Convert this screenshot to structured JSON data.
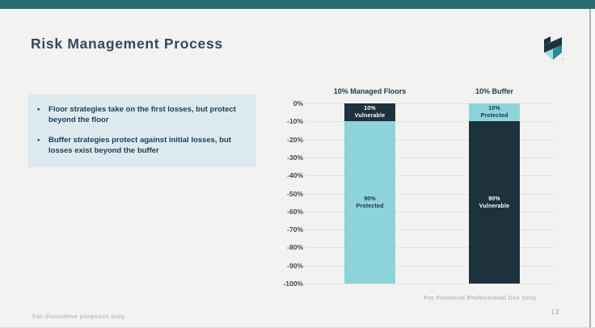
{
  "slide": {
    "title": "Risk Management Process",
    "page_number": "13",
    "footer_left": "For illustrative purposes only.",
    "footer_right": "For Financial Professional Use Only",
    "accent_bar_color": "#2b6a72",
    "bullet_box_color": "#dceaef"
  },
  "logo": {
    "name": "company-shield-logo"
  },
  "bullets": {
    "items": [
      "Floor strategies take on the first losses, but protect beyond the floor",
      "Buffer strategies protect against initial losses, but losses exist beyond the buffer"
    ]
  },
  "chart_data": {
    "type": "bar",
    "subtype": "stacked-column",
    "title": "",
    "xlabel": "",
    "ylabel": "",
    "categories": [
      "10% Managed Floors",
      "10% Buffer"
    ],
    "ylim": [
      -100,
      0
    ],
    "yticks": [
      "0%",
      "-10%",
      "-20%",
      "-30%",
      "-40%",
      "-50%",
      "-60%",
      "-70%",
      "-80%",
      "-90%",
      "-100%"
    ],
    "grid": true,
    "colors": {
      "dark_navy": "#1e323d",
      "light_teal": "#8dd3da"
    },
    "bars": [
      {
        "category": "10% Managed Floors",
        "segments": [
          {
            "from": 0,
            "to": -10,
            "value_pct": 10,
            "label_lines": [
              "10%",
              "Vulnerable"
            ],
            "color": "#1e323d",
            "text_color": "#ffffff"
          },
          {
            "from": -10,
            "to": -100,
            "value_pct": 90,
            "label_lines": [
              "90%",
              "Protected"
            ],
            "color": "#8dd3da",
            "text_color": "#1b3340"
          }
        ]
      },
      {
        "category": "10% Buffer",
        "segments": [
          {
            "from": 0,
            "to": -10,
            "value_pct": 10,
            "label_lines": [
              "10%",
              "Protected"
            ],
            "color": "#8dd3da",
            "text_color": "#1b3340"
          },
          {
            "from": -10,
            "to": -100,
            "value_pct": 90,
            "label_lines": [
              "90%",
              "Vulnerable"
            ],
            "color": "#1e323d",
            "text_color": "#ffffff"
          }
        ]
      }
    ]
  }
}
